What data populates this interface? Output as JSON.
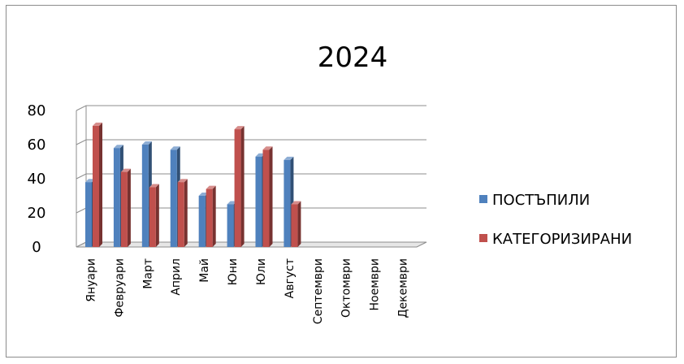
{
  "chart_data": {
    "type": "bar",
    "title": "2024",
    "categories": [
      "Януари",
      "Февруари",
      "Март",
      "Април",
      "Май",
      "Юни",
      "Юли",
      "Август",
      "Септември",
      "Октомври",
      "Ноември",
      "Декември"
    ],
    "series": [
      {
        "name": "ПОСТЪПИЛИ",
        "color": "#4f81bd",
        "values": [
          38,
          58,
          60,
          57,
          30,
          25,
          53,
          51,
          null,
          null,
          null,
          null
        ]
      },
      {
        "name": "КАТЕГОРИЗИРАНИ",
        "color": "#c0504d",
        "values": [
          71,
          44,
          35,
          38,
          34,
          69,
          57,
          25,
          null,
          null,
          null,
          null
        ]
      }
    ],
    "yticks": [
      "0",
      "20",
      "40",
      "60",
      "80"
    ],
    "ylim": [
      0,
      80
    ],
    "grid": true,
    "legend": "right",
    "style": "3d-clustered-columns"
  }
}
